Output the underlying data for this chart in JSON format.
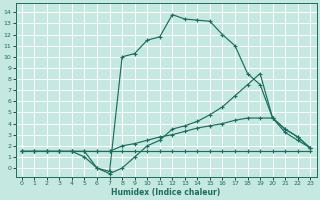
{
  "bg_color": "#c5e8e0",
  "grid_color": "#ffffff",
  "line_color": "#1a6e60",
  "xlabel": "Humidex (Indice chaleur)",
  "xlim": [
    -0.5,
    23.5
  ],
  "ylim": [
    -0.8,
    14.8
  ],
  "yticks": [
    0,
    1,
    2,
    3,
    4,
    5,
    6,
    7,
    8,
    9,
    10,
    11,
    12,
    13,
    14
  ],
  "xticks": [
    0,
    1,
    2,
    3,
    4,
    5,
    6,
    7,
    8,
    9,
    10,
    11,
    12,
    13,
    14,
    15,
    16,
    17,
    18,
    19,
    20,
    21,
    22,
    23
  ],
  "curves": [
    {
      "x": [
        0,
        1,
        2,
        3,
        4,
        5,
        6,
        7,
        8,
        9,
        10,
        11,
        12,
        13,
        14,
        15,
        16,
        17,
        18,
        19,
        20,
        21,
        22,
        23
      ],
      "y": [
        1.5,
        1.5,
        1.5,
        1.5,
        1.5,
        1.5,
        1.5,
        1.5,
        1.5,
        1.5,
        1.5,
        1.5,
        1.5,
        1.5,
        1.5,
        1.5,
        1.5,
        1.5,
        1.5,
        1.5,
        1.5,
        1.5,
        1.5,
        1.5
      ]
    },
    {
      "x": [
        0,
        1,
        2,
        3,
        4,
        5,
        6,
        7,
        8,
        9,
        10,
        11,
        12,
        13,
        14,
        15,
        16,
        17,
        18,
        19,
        20,
        21,
        22,
        23
      ],
      "y": [
        1.5,
        1.5,
        1.5,
        1.5,
        1.5,
        1.5,
        0.0,
        -0.3,
        10.0,
        10.3,
        11.5,
        11.8,
        13.8,
        13.4,
        13.3,
        13.2,
        12.0,
        11.0,
        8.5,
        7.5,
        4.5,
        3.2,
        2.5,
        1.8
      ]
    },
    {
      "x": [
        0,
        1,
        2,
        3,
        4,
        5,
        6,
        7,
        8,
        9,
        10,
        11,
        12,
        13,
        14,
        15,
        16,
        17,
        18,
        19,
        20,
        21,
        22,
        23
      ],
      "y": [
        1.5,
        1.5,
        1.5,
        1.5,
        1.5,
        1.5,
        1.5,
        1.5,
        2.0,
        2.2,
        2.5,
        2.8,
        3.0,
        3.3,
        3.6,
        3.8,
        4.0,
        4.3,
        4.5,
        4.5,
        4.5,
        3.5,
        2.8,
        1.8
      ]
    },
    {
      "x": [
        0,
        1,
        2,
        3,
        4,
        5,
        6,
        7,
        8,
        9,
        10,
        11,
        12,
        13,
        14,
        15,
        16,
        17,
        18,
        19,
        20,
        21,
        22,
        23
      ],
      "y": [
        1.5,
        1.5,
        1.5,
        1.5,
        1.5,
        1.0,
        0.0,
        -0.5,
        0.0,
        1.0,
        2.0,
        2.5,
        3.5,
        3.8,
        4.2,
        4.8,
        5.5,
        6.5,
        7.5,
        8.5,
        4.5,
        3.5,
        2.8,
        1.8
      ]
    }
  ]
}
